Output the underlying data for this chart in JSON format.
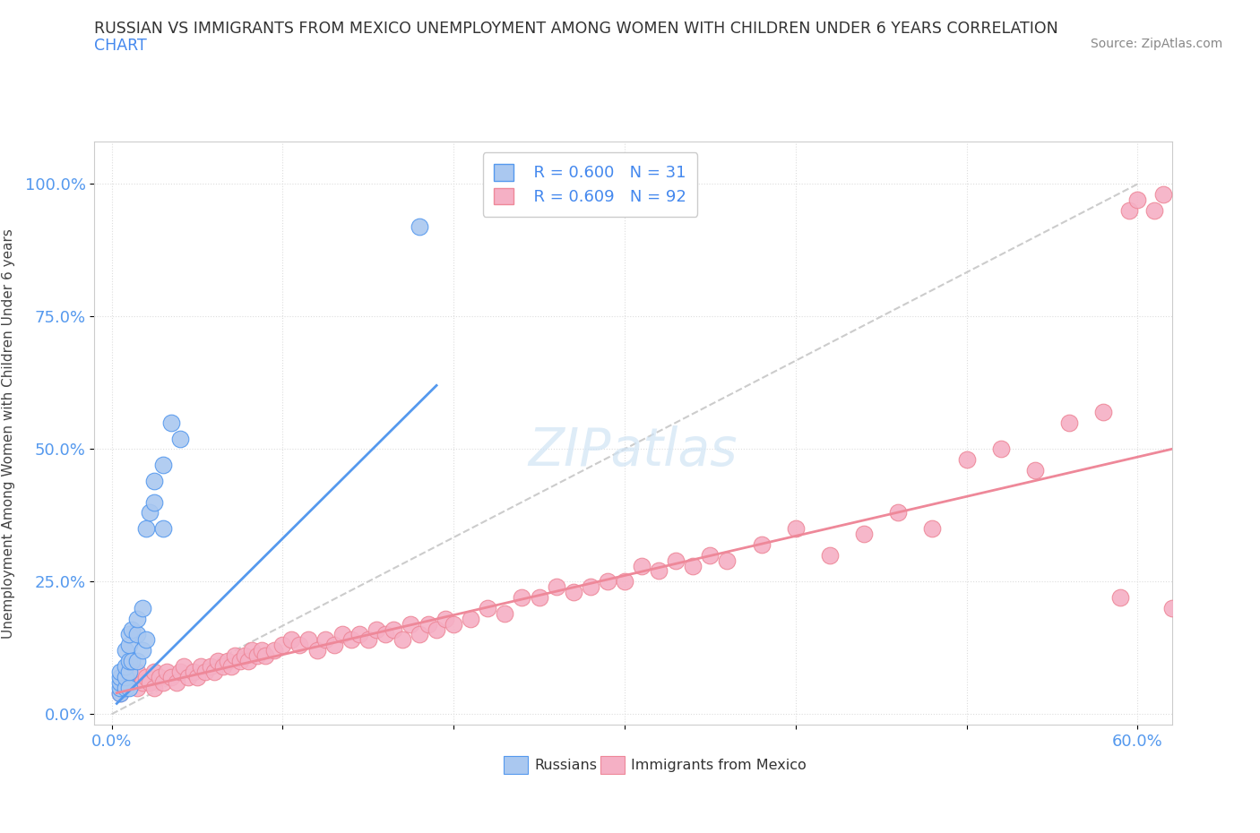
{
  "title_line1": "RUSSIAN VS IMMIGRANTS FROM MEXICO UNEMPLOYMENT AMONG WOMEN WITH CHILDREN UNDER 6 YEARS CORRELATION",
  "title_line2": "CHART",
  "source": "Source: ZipAtlas.com",
  "ylabel": "Unemployment Among Women with Children Under 6 years",
  "xlim": [
    -0.01,
    0.62
  ],
  "ylim": [
    -0.02,
    1.08
  ],
  "xticks": [
    0.0,
    0.6
  ],
  "xticklabels": [
    "0.0%",
    "60.0%"
  ],
  "yticks": [
    0.0,
    0.25,
    0.5,
    0.75,
    1.0
  ],
  "yticklabels": [
    "0.0%",
    "25.0%",
    "50.0%",
    "75.0%",
    "100.0%"
  ],
  "russians_color": "#aac8f0",
  "mexicans_color": "#f5b0c5",
  "russian_line_color": "#5599ee",
  "mexican_line_color": "#ee8899",
  "ref_line_color": "#cccccc",
  "watermark_color": "#d0e4f5",
  "russians_x": [
    0.005,
    0.005,
    0.005,
    0.005,
    0.005,
    0.008,
    0.008,
    0.008,
    0.008,
    0.01,
    0.01,
    0.01,
    0.01,
    0.01,
    0.012,
    0.012,
    0.015,
    0.015,
    0.015,
    0.018,
    0.018,
    0.02,
    0.02,
    0.022,
    0.025,
    0.025,
    0.03,
    0.03,
    0.035,
    0.04,
    0.18
  ],
  "russians_y": [
    0.04,
    0.05,
    0.06,
    0.07,
    0.08,
    0.05,
    0.07,
    0.09,
    0.12,
    0.05,
    0.08,
    0.1,
    0.13,
    0.15,
    0.1,
    0.16,
    0.1,
    0.15,
    0.18,
    0.12,
    0.2,
    0.14,
    0.35,
    0.38,
    0.4,
    0.44,
    0.35,
    0.47,
    0.55,
    0.52,
    0.92
  ],
  "mexicans_x": [
    0.005,
    0.008,
    0.01,
    0.012,
    0.015,
    0.015,
    0.018,
    0.02,
    0.022,
    0.025,
    0.025,
    0.028,
    0.03,
    0.032,
    0.035,
    0.038,
    0.04,
    0.042,
    0.045,
    0.048,
    0.05,
    0.052,
    0.055,
    0.058,
    0.06,
    0.062,
    0.065,
    0.068,
    0.07,
    0.072,
    0.075,
    0.078,
    0.08,
    0.082,
    0.085,
    0.088,
    0.09,
    0.095,
    0.1,
    0.105,
    0.11,
    0.115,
    0.12,
    0.125,
    0.13,
    0.135,
    0.14,
    0.145,
    0.15,
    0.155,
    0.16,
    0.165,
    0.17,
    0.175,
    0.18,
    0.185,
    0.19,
    0.195,
    0.2,
    0.21,
    0.22,
    0.23,
    0.24,
    0.25,
    0.26,
    0.27,
    0.28,
    0.29,
    0.3,
    0.31,
    0.32,
    0.33,
    0.34,
    0.35,
    0.36,
    0.38,
    0.4,
    0.42,
    0.44,
    0.46,
    0.48,
    0.5,
    0.52,
    0.54,
    0.56,
    0.58,
    0.59,
    0.595,
    0.6,
    0.61,
    0.615,
    0.62
  ],
  "mexicans_y": [
    0.04,
    0.05,
    0.06,
    0.06,
    0.05,
    0.08,
    0.06,
    0.07,
    0.06,
    0.05,
    0.08,
    0.07,
    0.06,
    0.08,
    0.07,
    0.06,
    0.08,
    0.09,
    0.07,
    0.08,
    0.07,
    0.09,
    0.08,
    0.09,
    0.08,
    0.1,
    0.09,
    0.1,
    0.09,
    0.11,
    0.1,
    0.11,
    0.1,
    0.12,
    0.11,
    0.12,
    0.11,
    0.12,
    0.13,
    0.14,
    0.13,
    0.14,
    0.12,
    0.14,
    0.13,
    0.15,
    0.14,
    0.15,
    0.14,
    0.16,
    0.15,
    0.16,
    0.14,
    0.17,
    0.15,
    0.17,
    0.16,
    0.18,
    0.17,
    0.18,
    0.2,
    0.19,
    0.22,
    0.22,
    0.24,
    0.23,
    0.24,
    0.25,
    0.25,
    0.28,
    0.27,
    0.29,
    0.28,
    0.3,
    0.29,
    0.32,
    0.35,
    0.3,
    0.34,
    0.38,
    0.35,
    0.48,
    0.5,
    0.46,
    0.55,
    0.57,
    0.22,
    0.95,
    0.97,
    0.95,
    0.98,
    0.2
  ],
  "russian_trend_x": [
    0.003,
    0.19
  ],
  "russian_trend_y": [
    0.02,
    0.62
  ],
  "mexican_trend_x": [
    0.003,
    0.62
  ],
  "mexican_trend_y": [
    0.04,
    0.5
  ],
  "ref_line_x": [
    0.0,
    0.6
  ],
  "ref_line_y": [
    0.0,
    1.0
  ]
}
